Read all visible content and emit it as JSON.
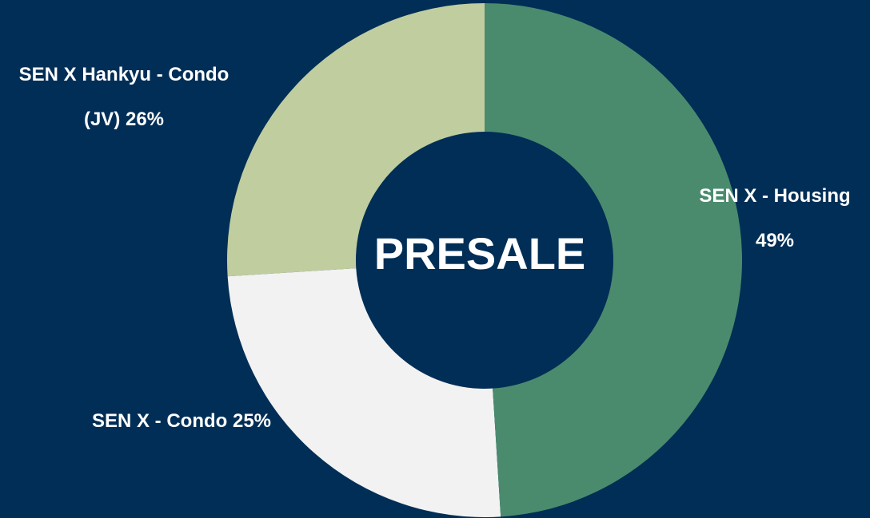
{
  "chart_data": {
    "type": "donut",
    "center_label": "PRESALE",
    "categories": [
      "SEN X - Housing",
      "SEN X - Condo",
      "SEN X Hankyu - Condo (JV)"
    ],
    "values": [
      49,
      25,
      26
    ],
    "value_labels": [
      "49%",
      "25%",
      "26%"
    ],
    "colors": [
      "#4a8b6e",
      "#f2f2f2",
      "#c0cd9f"
    ]
  }
}
